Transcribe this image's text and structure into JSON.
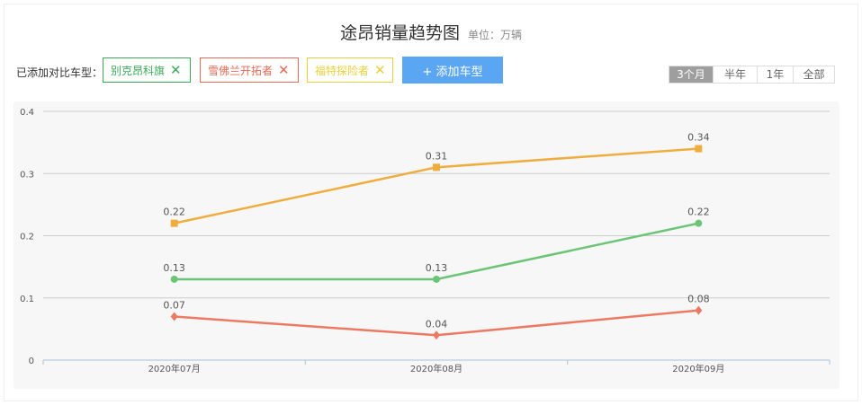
{
  "header": {
    "title": "途昂销量趋势图",
    "unit": "单位：万辆"
  },
  "compare": {
    "label": "已添加对比车型：",
    "tags": [
      {
        "name": "别克昂科旗",
        "color": "#3daa5b",
        "remove": "✕"
      },
      {
        "name": "雪佛兰开拓者",
        "color": "#ea6a55",
        "remove": "✕"
      },
      {
        "name": "福特探险者",
        "color": "#e8cf3c",
        "remove": "✕"
      }
    ],
    "add_label": "+ 添加车型"
  },
  "range": {
    "options": [
      "3个月",
      "半年",
      "1年",
      "全部"
    ],
    "selected": "3个月"
  },
  "chart_data": {
    "type": "line",
    "title": "途昂销量趋势图",
    "unit": "单位：万辆",
    "categories": [
      "2020年07月",
      "2020年08月",
      "2020年09月"
    ],
    "ylim": [
      0,
      0.4
    ],
    "yticks": [
      0,
      0.1,
      0.2,
      0.3,
      0.4
    ],
    "grid": true,
    "series": [
      {
        "values": [
          0.22,
          0.31,
          0.34
        ],
        "color": "#f0ad3e",
        "marker": "square"
      },
      {
        "values": [
          0.13,
          0.13,
          0.22
        ],
        "color": "#6cc576",
        "marker": "circle"
      },
      {
        "values": [
          0.07,
          0.04,
          0.08
        ],
        "color": "#ec7a62",
        "marker": "diamond"
      }
    ]
  }
}
